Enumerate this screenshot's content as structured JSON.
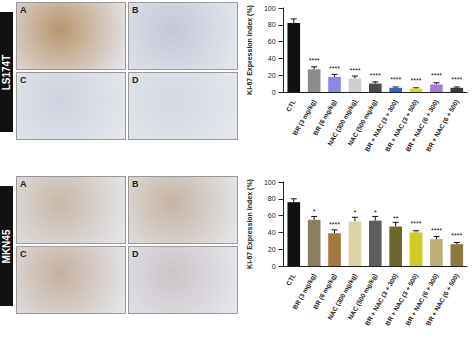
{
  "image_panels": [
    {
      "row_label": "LS174T",
      "panels": [
        "A",
        "B",
        "C",
        "D"
      ]
    },
    {
      "row_label": "MKN45",
      "panels": [
        "A",
        "B",
        "C",
        "D"
      ]
    }
  ],
  "chart_data": [
    {
      "type": "bar",
      "categories": [
        "CTL",
        "BR (3 mg/kg)",
        "BR (6 mg/kg)",
        "NAC (300 mg/kg)",
        "NAC (500 mg/kg)",
        "BR + NAC (3 + 300)",
        "BR + NAC (3 + 500)",
        "BR + NAC (6 + 300)",
        "BR + NAC (6 + 500)"
      ],
      "values": [
        82,
        27,
        18,
        16,
        10,
        5,
        4,
        9,
        5
      ],
      "errors": [
        5,
        3,
        3,
        3,
        2,
        1,
        1,
        2,
        1
      ],
      "significance": [
        "",
        "****",
        "****",
        "****",
        "****",
        "****",
        "****",
        "****",
        "****"
      ],
      "colors": [
        "#111111",
        "#8c8c8c",
        "#8a8ae6",
        "#cfcfcf",
        "#4a4a4a",
        "#3a64c8",
        "#d8d820",
        "#a67ad8",
        "#3a3a3a"
      ],
      "ylabel": "Ki-67 Expression Index (%)",
      "ylim": [
        0,
        100
      ],
      "yticks": [
        0,
        20,
        40,
        60,
        80,
        100
      ]
    },
    {
      "type": "bar",
      "categories": [
        "CTL",
        "BR (3 mg/kg)",
        "BR (6 mg/kg)",
        "NAC (300 mg/kg)",
        "NAC (500 mg/kg)",
        "BR + NAC (3 + 300)",
        "BR + NAC (3 + 500)",
        "BR + NAC (6 + 300)",
        "BR + NAC (6 + 500)"
      ],
      "values": [
        76,
        55,
        39,
        53,
        54,
        47,
        40,
        32,
        26
      ],
      "errors": [
        4,
        4,
        4,
        5,
        5,
        5,
        2,
        3,
        2
      ],
      "significance": [
        "",
        "*",
        "****",
        "*",
        "*",
        "**",
        "****",
        "****",
        "****"
      ],
      "colors": [
        "#111111",
        "#8a8060",
        "#a07840",
        "#dcd4a8",
        "#5e5e5e",
        "#6e6630",
        "#cccc22",
        "#bcae76",
        "#8a7a40"
      ],
      "ylabel": "Ki-67 Expression Index (%)",
      "ylim": [
        0,
        100
      ],
      "yticks": [
        0,
        20,
        40,
        60,
        80,
        100
      ]
    }
  ]
}
